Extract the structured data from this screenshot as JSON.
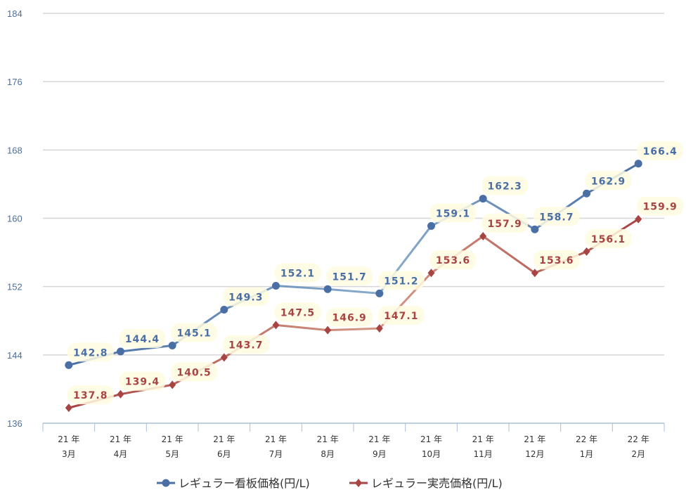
{
  "chart_data": {
    "type": "line",
    "categories": [
      [
        "21 年",
        "3月"
      ],
      [
        "21 年",
        "4月"
      ],
      [
        "21 年",
        "5月"
      ],
      [
        "21 年",
        "6月"
      ],
      [
        "21 年",
        "7月"
      ],
      [
        "21 年",
        "8月"
      ],
      [
        "21 年",
        "9月"
      ],
      [
        "21 年",
        "10月"
      ],
      [
        "21 年",
        "11月"
      ],
      [
        "21 年",
        "12月"
      ],
      [
        "22 年",
        "1月"
      ],
      [
        "22 年",
        "2月"
      ]
    ],
    "ylim": [
      136,
      184
    ],
    "yticks": [
      136,
      144,
      152,
      160,
      168,
      176,
      184
    ],
    "grid": true,
    "legend_position": "bottom",
    "series": [
      {
        "name": "レギュラー看板価格(円/L)",
        "marker": "circle",
        "color": "#4a6fa5",
        "values": [
          142.8,
          144.4,
          145.1,
          149.3,
          152.1,
          151.7,
          151.2,
          159.1,
          162.3,
          158.7,
          162.9,
          166.4
        ]
      },
      {
        "name": "レギュラー実売価格(円/L)",
        "marker": "diamond",
        "color": "#a84444",
        "values": [
          137.8,
          139.4,
          140.5,
          143.7,
          147.5,
          146.9,
          147.1,
          153.6,
          157.9,
          153.6,
          156.1,
          159.9
        ]
      }
    ]
  }
}
